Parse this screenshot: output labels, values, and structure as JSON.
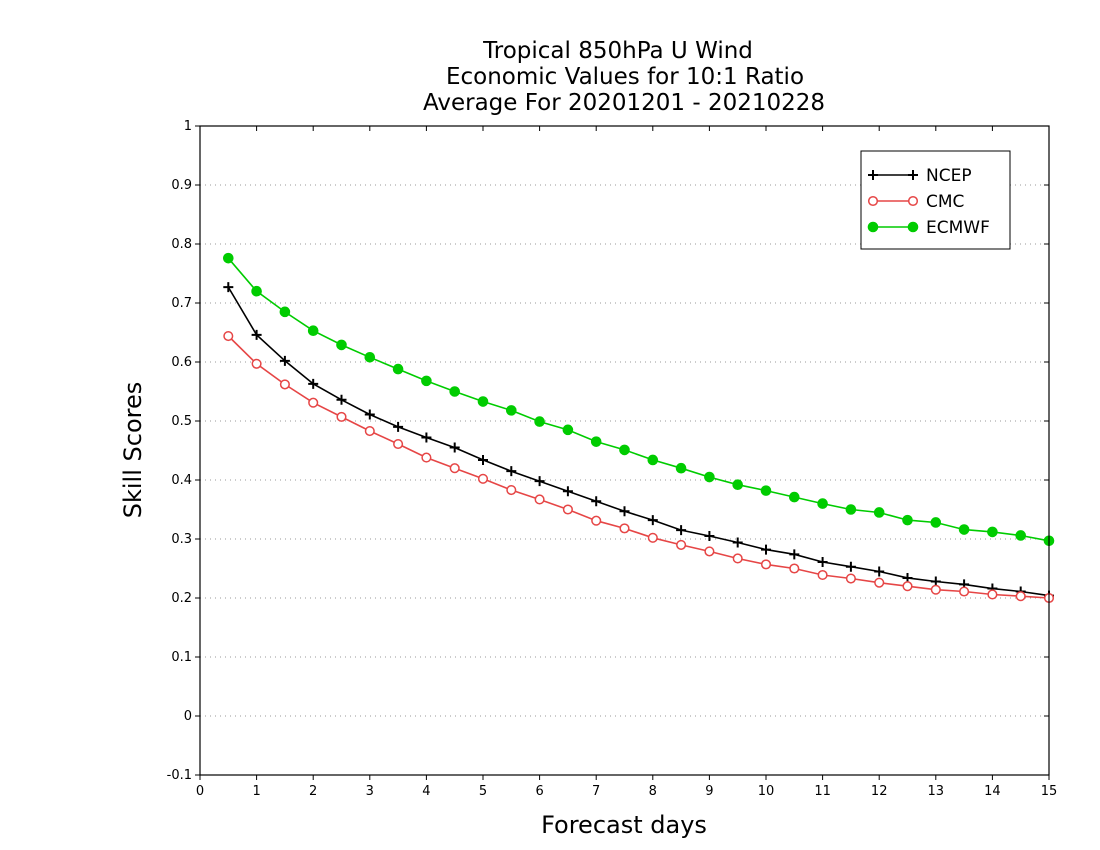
{
  "chart_data": {
    "type": "line",
    "title": [
      "Tropical 850hPa U Wind",
      "Economic Values for 10:1 Ratio",
      "Average For 20201201 - 20210228"
    ],
    "xlabel": "Forecast days",
    "ylabel": "Skill Scores",
    "xlim": [
      0,
      15
    ],
    "ylim": [
      -0.1,
      1
    ],
    "xticks": [
      0,
      1,
      2,
      3,
      4,
      5,
      6,
      7,
      8,
      9,
      10,
      11,
      12,
      13,
      14,
      15
    ],
    "xtick_labels": [
      "0",
      "1",
      "2",
      "3",
      "4",
      "5",
      "6",
      "7",
      "8",
      "9",
      "10",
      "11",
      "12",
      "13",
      "14",
      "15"
    ],
    "yticks": [
      -0.1,
      0,
      0.1,
      0.2,
      0.3,
      0.4,
      0.5,
      0.6,
      0.7,
      0.8,
      0.9,
      1
    ],
    "ytick_labels": [
      "-0.1",
      "0",
      "0.1",
      "0.2",
      "0.3",
      "0.4",
      "0.5",
      "0.6",
      "0.7",
      "0.8",
      "0.9",
      "1"
    ],
    "grid": "horizontal dotted",
    "legend_position": "top-right",
    "x": [
      0.5,
      1,
      1.5,
      2,
      2.5,
      3,
      3.5,
      4,
      4.5,
      5,
      5.5,
      6,
      6.5,
      7,
      7.5,
      8,
      8.5,
      9,
      9.5,
      10,
      10.5,
      11,
      11.5,
      12,
      12.5,
      13,
      13.5,
      14,
      14.5,
      15
    ],
    "series": [
      {
        "name": "NCEP",
        "color": "#000000",
        "marker": "plus",
        "values": [
          0.727,
          0.646,
          0.602,
          0.563,
          0.536,
          0.511,
          0.49,
          0.472,
          0.455,
          0.434,
          0.415,
          0.398,
          0.381,
          0.364,
          0.347,
          0.332,
          0.315,
          0.305,
          0.294,
          0.282,
          0.274,
          0.261,
          0.253,
          0.245,
          0.234,
          0.228,
          0.223,
          0.216,
          0.211,
          0.204
        ]
      },
      {
        "name": "CMC",
        "color": "#e64646",
        "marker": "open-circle",
        "values": [
          0.644,
          0.597,
          0.562,
          0.531,
          0.507,
          0.483,
          0.461,
          0.438,
          0.42,
          0.402,
          0.383,
          0.367,
          0.35,
          0.331,
          0.318,
          0.302,
          0.29,
          0.279,
          0.267,
          0.257,
          0.25,
          0.239,
          0.233,
          0.226,
          0.22,
          0.214,
          0.211,
          0.206,
          0.203,
          0.2
        ]
      },
      {
        "name": "ECMWF",
        "color": "#00cc00",
        "marker": "filled-circle",
        "values": [
          0.776,
          0.72,
          0.685,
          0.653,
          0.629,
          0.608,
          0.588,
          0.568,
          0.55,
          0.533,
          0.518,
          0.499,
          0.485,
          0.465,
          0.451,
          0.434,
          0.42,
          0.405,
          0.392,
          0.382,
          0.371,
          0.36,
          0.35,
          0.345,
          0.332,
          0.328,
          0.316,
          0.312,
          0.306,
          0.297
        ]
      }
    ]
  }
}
